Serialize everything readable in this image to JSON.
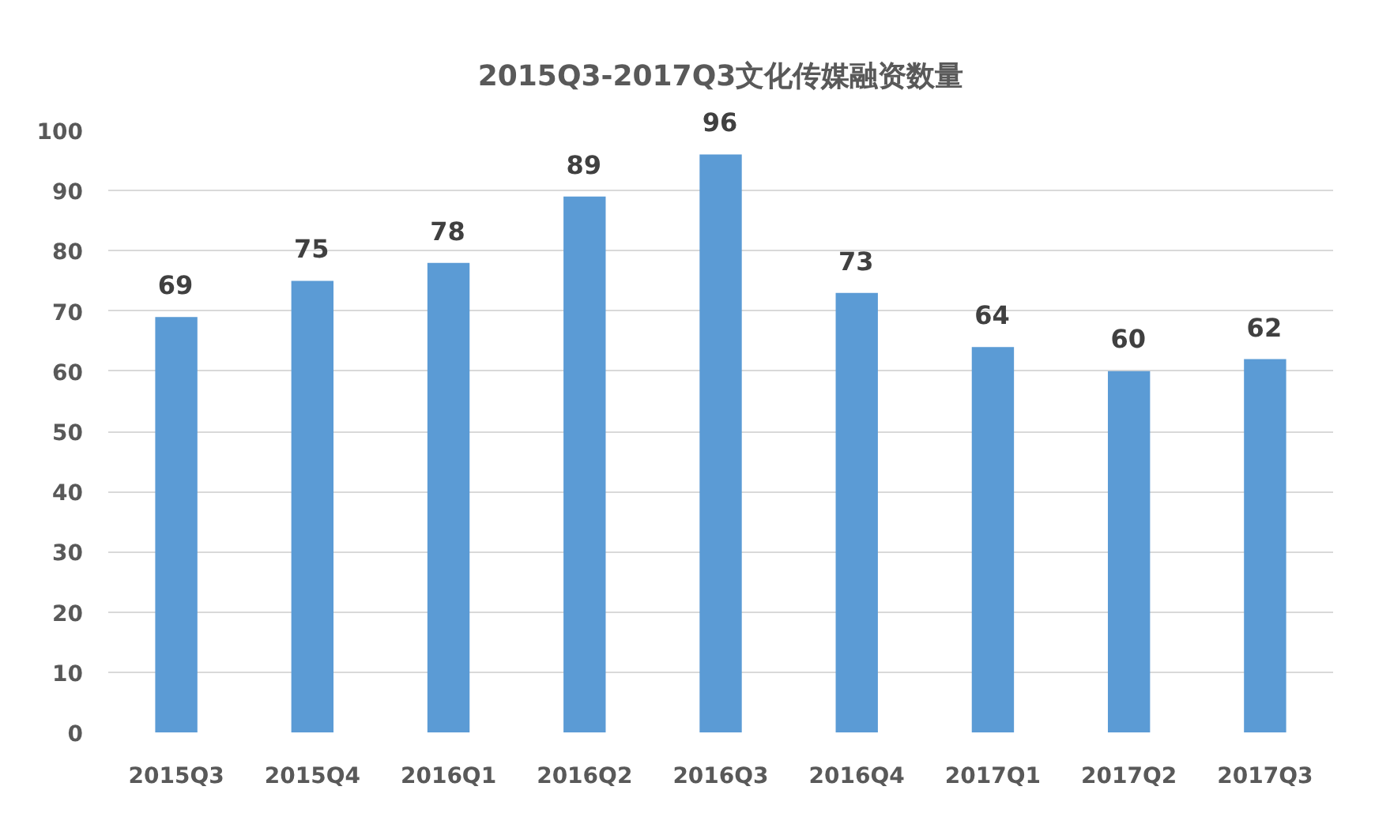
{
  "chart_data": {
    "type": "bar",
    "title": "2015Q3-2017Q3文化传媒融资数量",
    "categories": [
      "2015Q3",
      "2015Q4",
      "2016Q1",
      "2016Q2",
      "2016Q3",
      "2016Q4",
      "2017Q1",
      "2017Q2",
      "2017Q3"
    ],
    "values": [
      69,
      75,
      78,
      89,
      96,
      73,
      64,
      60,
      62
    ],
    "color": "#5b9bd5",
    "ylim": [
      0,
      100
    ],
    "yticks": [
      0,
      10,
      20,
      30,
      40,
      50,
      60,
      70,
      80,
      90,
      100
    ],
    "grid": "y",
    "data_labels": true
  }
}
